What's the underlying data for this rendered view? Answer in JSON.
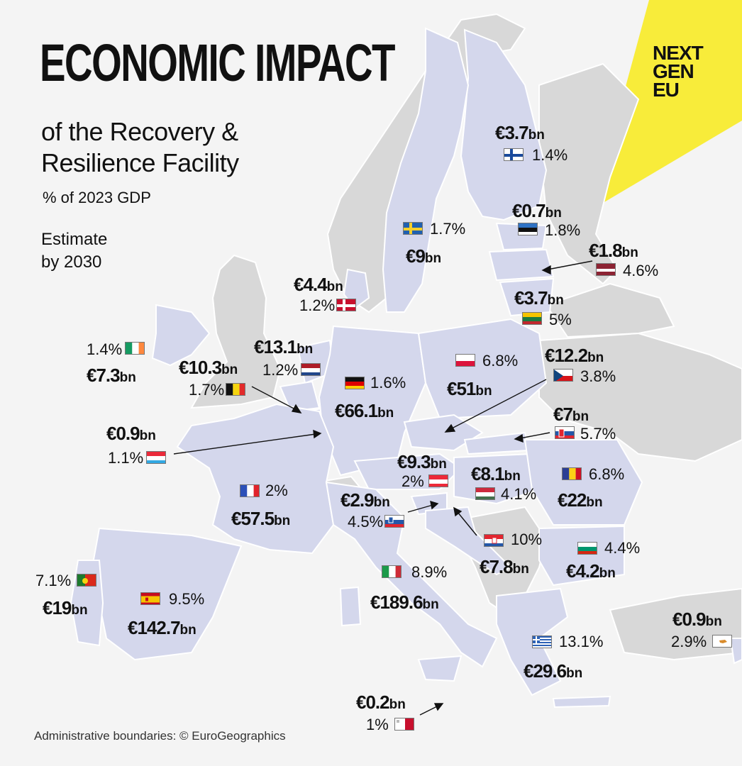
{
  "title": "ECONOMIC IMPACT",
  "subtitle": [
    "of the Recovery &",
    "Resilience Facility"
  ],
  "gdp_note": "% of 2023 GDP",
  "estimate": [
    "Estimate",
    "by 2030"
  ],
  "footer": "Administrative boundaries: © EuroGeographics",
  "badge": [
    "NEXT",
    "GEN",
    "EU"
  ],
  "colors": {
    "eu_land": "#d4d7ec",
    "non_eu_land": "#d8d8d8",
    "sea": "#f4f4f4",
    "badge": "#f8ec3a",
    "border": "#ffffff"
  },
  "countries": [
    {
      "id": "finland",
      "amount": "€3.7",
      "unit": "bn",
      "pct": "1.4%",
      "flag_icon": "finland-flag-icon"
    },
    {
      "id": "sweden",
      "amount": "€9",
      "unit": "bn",
      "pct": "1.7%",
      "flag_icon": "sweden-flag-icon"
    },
    {
      "id": "estonia",
      "amount": "€0.7",
      "unit": "bn",
      "pct": "1.8%",
      "flag_icon": "estonia-flag-icon"
    },
    {
      "id": "latvia",
      "amount": "€1.8",
      "unit": "bn",
      "pct": "4.6%",
      "flag_icon": "latvia-flag-icon"
    },
    {
      "id": "lithuania",
      "amount": "€3.7",
      "unit": "bn",
      "pct": "5%",
      "flag_icon": "lithuania-flag-icon"
    },
    {
      "id": "denmark",
      "amount": "€4.4",
      "unit": "bn",
      "pct": "1.2%",
      "flag_icon": "denmark-flag-icon"
    },
    {
      "id": "ireland",
      "amount": "€7.3",
      "unit": "bn",
      "pct": "1.4%",
      "flag_icon": "ireland-flag-icon"
    },
    {
      "id": "netherlands",
      "amount": "€13.1",
      "unit": "bn",
      "pct": "1.2%",
      "flag_icon": "netherlands-flag-icon"
    },
    {
      "id": "belgium",
      "amount": "€10.3",
      "unit": "bn",
      "pct": "1.7%",
      "flag_icon": "belgium-flag-icon"
    },
    {
      "id": "germany",
      "amount": "€66.1",
      "unit": "bn",
      "pct": "1.6%",
      "flag_icon": "germany-flag-icon"
    },
    {
      "id": "poland",
      "amount": "€51",
      "unit": "bn",
      "pct": "6.8%",
      "flag_icon": "poland-flag-icon"
    },
    {
      "id": "czechia",
      "amount": "€12.2",
      "unit": "bn",
      "pct": "3.8%",
      "flag_icon": "czechia-flag-icon"
    },
    {
      "id": "slovakia",
      "amount": "€7",
      "unit": "bn",
      "pct": "5.7%",
      "flag_icon": "slovakia-flag-icon"
    },
    {
      "id": "luxembourg",
      "amount": "€0.9",
      "unit": "bn",
      "pct": "1.1%",
      "flag_icon": "luxembourg-flag-icon"
    },
    {
      "id": "austria",
      "amount": "€9.3",
      "unit": "bn",
      "pct": "2%",
      "flag_icon": "austria-flag-icon"
    },
    {
      "id": "hungary",
      "amount": "€8.1",
      "unit": "bn",
      "pct": "4.1%",
      "flag_icon": "hungary-flag-icon"
    },
    {
      "id": "romania",
      "amount": "€22",
      "unit": "bn",
      "pct": "6.8%",
      "flag_icon": "romania-flag-icon"
    },
    {
      "id": "france",
      "amount": "€57.5",
      "unit": "bn",
      "pct": "2%",
      "flag_icon": "france-flag-icon"
    },
    {
      "id": "slovenia",
      "amount": "€2.9",
      "unit": "bn",
      "pct": "4.5%",
      "flag_icon": "slovenia-flag-icon"
    },
    {
      "id": "croatia",
      "amount": "€7.8",
      "unit": "bn",
      "pct": "10%",
      "flag_icon": "croatia-flag-icon"
    },
    {
      "id": "bulgaria",
      "amount": "€4.2",
      "unit": "bn",
      "pct": "4.4%",
      "flag_icon": "bulgaria-flag-icon"
    },
    {
      "id": "portugal",
      "amount": "€19",
      "unit": "bn",
      "pct": "7.1%",
      "flag_icon": "portugal-flag-icon"
    },
    {
      "id": "spain",
      "amount": "€142.7",
      "unit": "bn",
      "pct": "9.5%",
      "flag_icon": "spain-flag-icon"
    },
    {
      "id": "italy",
      "amount": "€189.6",
      "unit": "bn",
      "pct": "8.9%",
      "flag_icon": "italy-flag-icon"
    },
    {
      "id": "greece",
      "amount": "€29.6",
      "unit": "bn",
      "pct": "13.1%",
      "flag_icon": "greece-flag-icon"
    },
    {
      "id": "cyprus",
      "amount": "€0.9",
      "unit": "bn",
      "pct": "2.9%",
      "flag_icon": "cyprus-flag-icon"
    },
    {
      "id": "malta",
      "amount": "€0.2",
      "unit": "bn",
      "pct": "1%",
      "flag_icon": "malta-flag-icon"
    }
  ]
}
